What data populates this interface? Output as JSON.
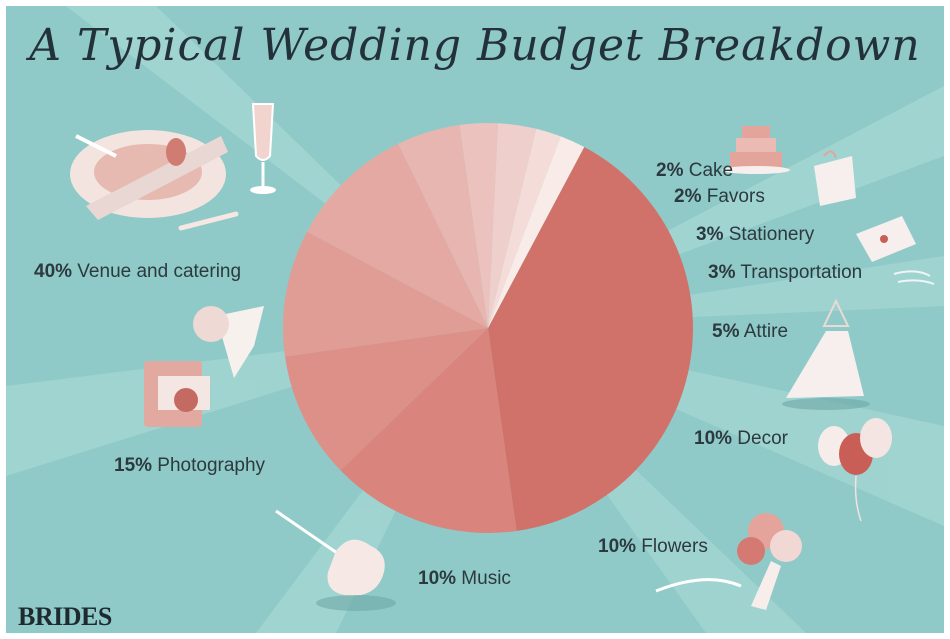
{
  "title": "A Typical Wedding Budget Breakdown",
  "brand": "BRIDES",
  "colors": {
    "background": "#8fcac8",
    "ray": "#a9d8d5",
    "text": "#2c3a40",
    "slices": [
      "#d0726a",
      "#d9847c",
      "#dd9088",
      "#e09d96",
      "#e3a9a2",
      "#e7b6b0",
      "#ebc2bd",
      "#efcfcb",
      "#f4ddd9",
      "#f8ebe8"
    ]
  },
  "chart_data": {
    "type": "pie",
    "title": "A Typical Wedding Budget Breakdown",
    "slices": [
      {
        "label": "Venue and catering",
        "value": 40,
        "display": "40%"
      },
      {
        "label": "Photography",
        "value": 15,
        "display": "15%"
      },
      {
        "label": "Music",
        "value": 10,
        "display": "10%"
      },
      {
        "label": "Flowers",
        "value": 10,
        "display": "10%"
      },
      {
        "label": "Decor",
        "value": 10,
        "display": "10%"
      },
      {
        "label": "Attire",
        "value": 5,
        "display": "5%"
      },
      {
        "label": "Transportation",
        "value": 3,
        "display": "3%"
      },
      {
        "label": "Stationery",
        "value": 3,
        "display": "3%"
      },
      {
        "label": "Favors",
        "value": 2,
        "display": "2%"
      },
      {
        "label": "Cake",
        "value": 2,
        "display": "2%"
      }
    ]
  },
  "icons": [
    "place-setting-icon",
    "champagne-glass-icon",
    "camera-icon",
    "violin-icon",
    "bouquet-icon",
    "balloons-icon",
    "wedding-dress-icon",
    "wind-icon",
    "envelope-icon",
    "gift-bag-icon",
    "cake-icon"
  ]
}
